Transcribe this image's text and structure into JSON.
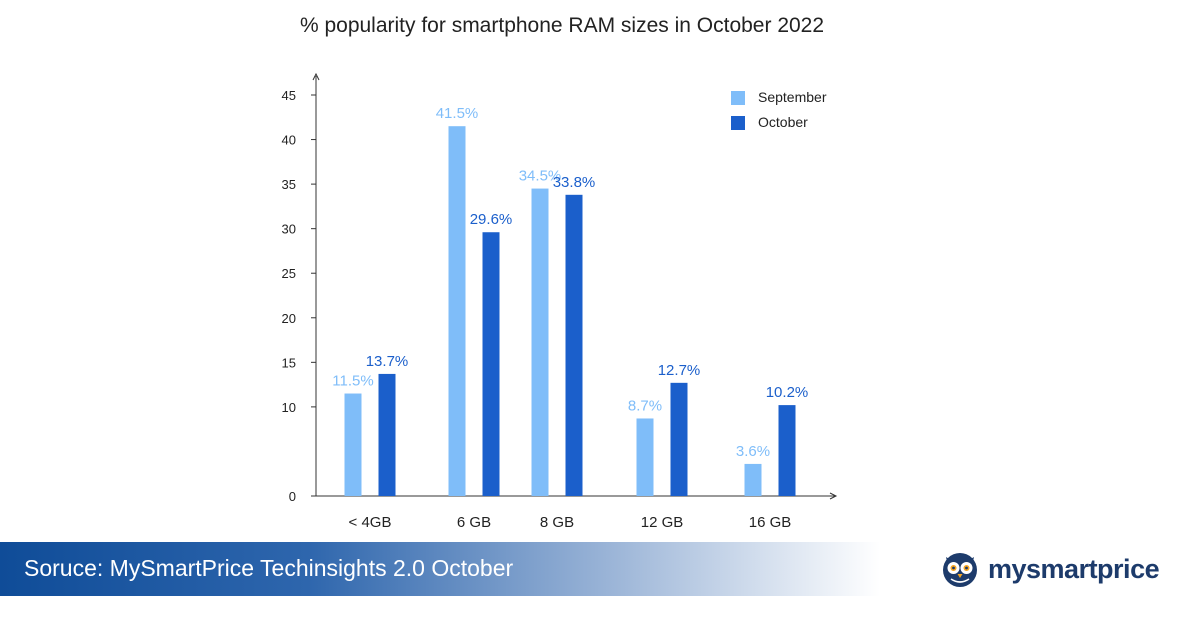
{
  "chart_data": {
    "type": "bar",
    "title": "% popularity for smartphone RAM sizes in October 2022",
    "xlabel": "",
    "ylabel": "",
    "categories": [
      "< 4GB",
      "6 GB",
      "8 GB",
      "12 GB",
      "16 GB"
    ],
    "series": [
      {
        "name": "September",
        "color": "#7fbdf9",
        "values": [
          11.5,
          41.5,
          34.5,
          8.7,
          3.6
        ],
        "labels": [
          "11.5%",
          "41.5%",
          "34.5%",
          "8.7%",
          "3.6%"
        ]
      },
      {
        "name": "October",
        "color": "#1b5fcb",
        "values": [
          13.7,
          29.6,
          33.8,
          12.7,
          10.2
        ],
        "labels": [
          "13.7%",
          "29.6%",
          "33.8%",
          "12.7%",
          "10.2%"
        ]
      }
    ],
    "y_ticks": [
      0,
      10,
      15,
      20,
      25,
      30,
      35,
      40,
      45
    ],
    "ylim": [
      0,
      45
    ],
    "grid": false,
    "legend_position": "top-right"
  },
  "footer": {
    "source_text": "Soruce: MySmartPrice Techinsights 2.0 October"
  },
  "brand": {
    "name": "mysmartprice",
    "icon": "owl-logo-icon",
    "color": "#1d3b6b"
  }
}
